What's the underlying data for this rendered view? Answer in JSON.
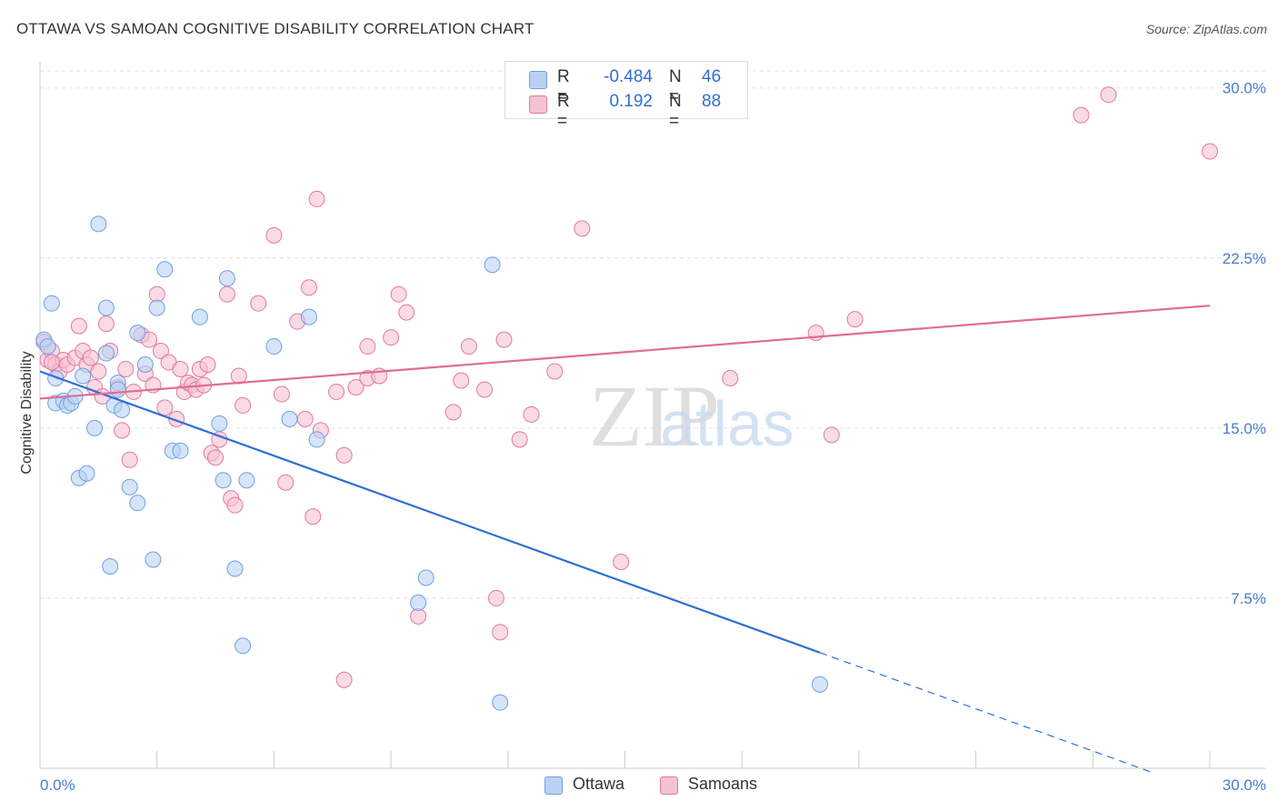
{
  "title": "OTTAWA VS SAMOAN COGNITIVE DISABILITY CORRELATION CHART",
  "source": "Source: ZipAtlas.com",
  "watermark": "ZIPatlas",
  "legend": {
    "r_label": "R =",
    "n_label": "N =",
    "ottawa": {
      "r": "-0.484",
      "n": "46",
      "color": "#6fa0e0",
      "fill": "#b9d2f4"
    },
    "samoans": {
      "r": "0.192",
      "n": "88",
      "color": "#e07aa0",
      "fill": "#f6c2d2"
    }
  },
  "bottom_legend": [
    "Ottawa",
    "Samoans"
  ],
  "chart_data": {
    "type": "scatter",
    "title": "OTTAWA VS SAMOAN COGNITIVE DISABILITY CORRELATION CHART",
    "ylabel": "Cognitive Disability",
    "xlabel": "",
    "xlim": [
      0,
      30
    ],
    "ylim": [
      0,
      30
    ],
    "x_tick_labels": [
      "0.0%",
      "30.0%"
    ],
    "y_tick_labels": [
      "7.5%",
      "15.0%",
      "22.5%",
      "30.0%"
    ],
    "y_ticks": [
      7.5,
      15.0,
      22.5,
      30.0
    ],
    "grid": true,
    "series": [
      {
        "name": "Ottawa",
        "color": "#5a8fd8",
        "trend": {
          "x0": 0.0,
          "y0": 17.5,
          "x1": 20.0,
          "y1": 5.1,
          "dash_to_x": 28.5
        },
        "points": [
          [
            0.1,
            18.9
          ],
          [
            0.3,
            20.5
          ],
          [
            0.4,
            17.2
          ],
          [
            0.4,
            16.1
          ],
          [
            0.6,
            16.2
          ],
          [
            0.7,
            16.0
          ],
          [
            0.8,
            16.1
          ],
          [
            0.9,
            16.4
          ],
          [
            1.0,
            12.8
          ],
          [
            1.1,
            17.3
          ],
          [
            1.2,
            13.0
          ],
          [
            1.4,
            15.0
          ],
          [
            1.5,
            24.0
          ],
          [
            1.7,
            20.3
          ],
          [
            1.8,
            8.9
          ],
          [
            1.9,
            16.0
          ],
          [
            2.0,
            17.0
          ],
          [
            2.0,
            16.7
          ],
          [
            2.1,
            15.8
          ],
          [
            2.3,
            12.4
          ],
          [
            2.5,
            11.7
          ],
          [
            2.5,
            19.2
          ],
          [
            2.7,
            17.8
          ],
          [
            2.9,
            9.2
          ],
          [
            3.0,
            20.3
          ],
          [
            3.2,
            22.0
          ],
          [
            3.4,
            14.0
          ],
          [
            3.6,
            14.0
          ],
          [
            4.1,
            19.9
          ],
          [
            4.6,
            15.2
          ],
          [
            4.7,
            12.7
          ],
          [
            4.8,
            21.6
          ],
          [
            5.0,
            8.8
          ],
          [
            5.2,
            5.4
          ],
          [
            5.3,
            12.7
          ],
          [
            6.0,
            18.6
          ],
          [
            6.4,
            15.4
          ],
          [
            6.9,
            19.9
          ],
          [
            7.1,
            14.5
          ],
          [
            9.7,
            7.3
          ],
          [
            9.9,
            8.4
          ],
          [
            11.6,
            22.2
          ],
          [
            11.8,
            2.9
          ],
          [
            20.0,
            3.7
          ],
          [
            0.2,
            18.6
          ],
          [
            1.7,
            18.3
          ]
        ]
      },
      {
        "name": "Samoans",
        "color": "#e07aa0",
        "trend": {
          "x0": 0.0,
          "y0": 16.3,
          "x1": 30.0,
          "y1": 20.4
        },
        "points": [
          [
            0.1,
            18.8
          ],
          [
            0.2,
            18.0
          ],
          [
            0.3,
            18.4
          ],
          [
            0.4,
            17.8
          ],
          [
            0.5,
            17.5
          ],
          [
            0.6,
            18.0
          ],
          [
            0.7,
            17.8
          ],
          [
            0.9,
            18.1
          ],
          [
            1.0,
            19.5
          ],
          [
            1.1,
            18.4
          ],
          [
            1.2,
            17.8
          ],
          [
            1.3,
            18.1
          ],
          [
            1.4,
            16.8
          ],
          [
            1.5,
            17.5
          ],
          [
            1.6,
            16.4
          ],
          [
            1.7,
            19.6
          ],
          [
            1.8,
            18.4
          ],
          [
            2.0,
            16.8
          ],
          [
            2.1,
            14.9
          ],
          [
            2.2,
            17.6
          ],
          [
            2.4,
            16.6
          ],
          [
            2.3,
            13.6
          ],
          [
            2.6,
            19.1
          ],
          [
            2.7,
            17.4
          ],
          [
            2.8,
            18.9
          ],
          [
            2.9,
            16.9
          ],
          [
            3.0,
            20.9
          ],
          [
            3.1,
            18.4
          ],
          [
            3.2,
            15.9
          ],
          [
            3.3,
            17.9
          ],
          [
            3.5,
            15.4
          ],
          [
            3.6,
            17.6
          ],
          [
            3.7,
            16.6
          ],
          [
            3.8,
            17.0
          ],
          [
            3.9,
            16.9
          ],
          [
            4.0,
            16.7
          ],
          [
            4.1,
            17.6
          ],
          [
            4.2,
            16.9
          ],
          [
            4.3,
            17.8
          ],
          [
            4.4,
            13.9
          ],
          [
            4.5,
            13.7
          ],
          [
            4.6,
            14.5
          ],
          [
            4.8,
            20.9
          ],
          [
            4.9,
            11.9
          ],
          [
            5.0,
            11.6
          ],
          [
            5.1,
            17.3
          ],
          [
            5.2,
            16.0
          ],
          [
            5.6,
            20.5
          ],
          [
            6.0,
            23.5
          ],
          [
            6.2,
            16.5
          ],
          [
            6.3,
            12.6
          ],
          [
            6.6,
            19.7
          ],
          [
            6.8,
            15.4
          ],
          [
            6.9,
            21.2
          ],
          [
            7.0,
            11.1
          ],
          [
            7.1,
            25.1
          ],
          [
            7.2,
            14.9
          ],
          [
            7.6,
            16.6
          ],
          [
            7.8,
            13.8
          ],
          [
            7.8,
            3.9
          ],
          [
            8.1,
            16.8
          ],
          [
            8.4,
            17.2
          ],
          [
            8.4,
            18.6
          ],
          [
            8.7,
            17.3
          ],
          [
            9.0,
            19.0
          ],
          [
            9.2,
            20.9
          ],
          [
            9.4,
            20.1
          ],
          [
            9.7,
            6.7
          ],
          [
            10.6,
            15.7
          ],
          [
            10.8,
            17.1
          ],
          [
            11.0,
            18.6
          ],
          [
            11.4,
            16.7
          ],
          [
            11.7,
            7.5
          ],
          [
            11.8,
            6.0
          ],
          [
            11.9,
            18.9
          ],
          [
            12.3,
            14.5
          ],
          [
            12.6,
            15.6
          ],
          [
            13.2,
            17.5
          ],
          [
            13.9,
            23.8
          ],
          [
            14.9,
            9.1
          ],
          [
            17.7,
            17.2
          ],
          [
            19.9,
            19.2
          ],
          [
            20.3,
            14.7
          ],
          [
            20.9,
            19.8
          ],
          [
            26.7,
            28.8
          ],
          [
            27.4,
            29.7
          ],
          [
            30.0,
            27.2
          ],
          [
            0.3,
            17.9
          ]
        ]
      }
    ]
  }
}
